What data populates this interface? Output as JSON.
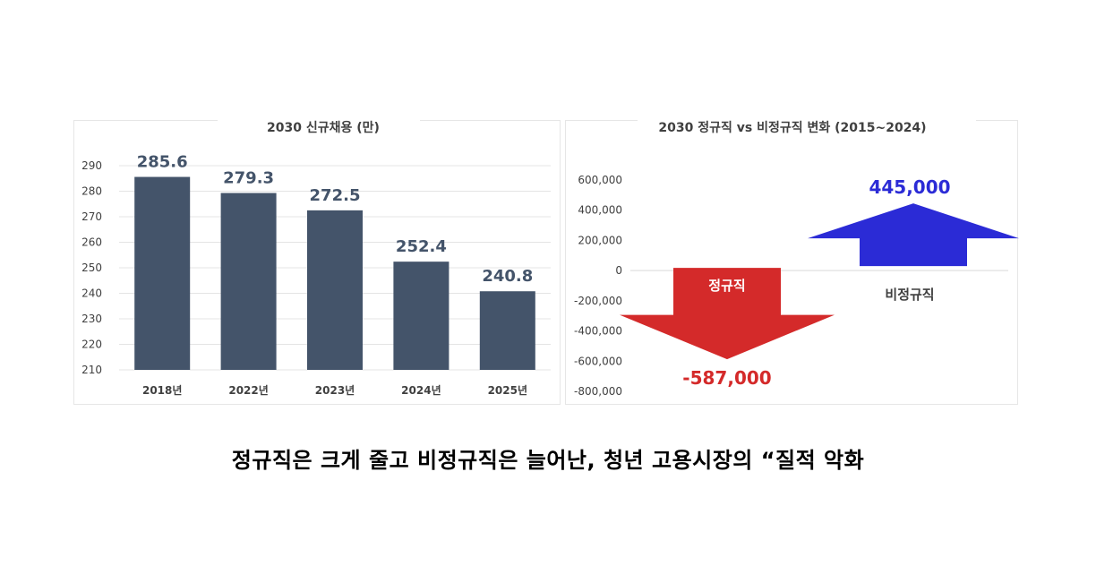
{
  "chart_data": [
    {
      "type": "bar",
      "title": "2030 신규채용 (만)",
      "categories": [
        "2018년",
        "2022년",
        "2023년",
        "2024년",
        "2025년"
      ],
      "values": [
        285.6,
        279.3,
        272.5,
        252.4,
        240.8
      ],
      "value_labels": [
        "285.6",
        "279.3",
        "272.5",
        "252.4",
        "240.8"
      ],
      "ylim": [
        210,
        290
      ],
      "yticks": [
        210,
        220,
        230,
        240,
        250,
        260,
        270,
        280,
        290
      ],
      "ytick_labels": [
        "210",
        "220",
        "230",
        "240",
        "250",
        "260",
        "270",
        "280",
        "290"
      ],
      "grid": true,
      "legend": "none",
      "bar_color": "#44546a"
    },
    {
      "type": "bar",
      "title": "2030 정규직 vs 비정규직 변화 (2015~2024)",
      "categories": [
        "정규직",
        "비정규직"
      ],
      "values": [
        -587000,
        445000
      ],
      "value_labels": [
        "-587,000",
        "445,000"
      ],
      "ylim": [
        -800000,
        600000
      ],
      "yticks": [
        600000,
        400000,
        200000,
        0,
        -200000,
        -400000,
        -600000,
        -800000
      ],
      "ytick_labels": [
        "600,000",
        "400,000",
        "200,000",
        "0",
        "-200,000",
        "-400,000",
        "-600,000",
        "-800,000"
      ],
      "grid": false,
      "legend": "none",
      "colors": [
        "#d42a2a",
        "#2b2bd6"
      ],
      "category_label_colors": [
        "#ffffff",
        "#404040"
      ]
    }
  ],
  "caption": "정규직은 크게 줄고 비정규직은 늘어난, 청년 고용시장의 “질적 악화"
}
